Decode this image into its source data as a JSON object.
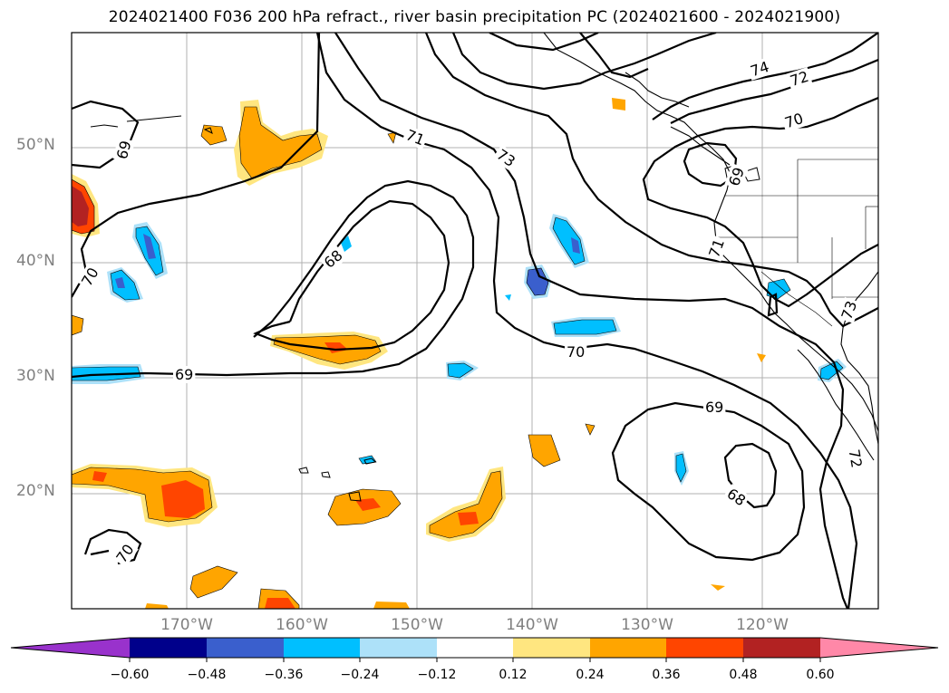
{
  "title": "2024021400 F036 200 hPa refract., river basin precipitation PC (2024021600 - 2024021900)",
  "lat_labels": [
    "50°N",
    "40°N",
    "30°N",
    "20°N"
  ],
  "lon_labels": [
    "170°W",
    "160°W",
    "150°W",
    "140°W",
    "130°W",
    "120°W"
  ],
  "contour_labels": [
    "74",
    "72",
    "70",
    "71",
    "73",
    "69",
    "68",
    "70",
    "71",
    "73",
    "69",
    "68",
    "70",
    "70",
    "69",
    "72",
    "69",
    "68",
    "70"
  ],
  "colorbar": {
    "ticks": [
      "−0.60",
      "−0.48",
      "−0.36",
      "−0.24",
      "−0.12",
      "0.12",
      "0.24",
      "0.36",
      "0.48",
      "0.60"
    ],
    "colors": [
      "#9932CC",
      "#00008B",
      "#3A5FCD",
      "#00BFFF",
      "#ADE1F9",
      "#FFFFFF",
      "#FFE680",
      "#FFA500",
      "#FF4500",
      "#B22222",
      "#FF88A8"
    ]
  }
}
